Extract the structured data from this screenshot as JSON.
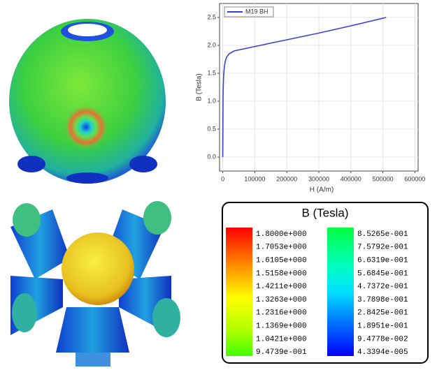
{
  "chart_data": {
    "type": "line",
    "x_label": "H (A/m)",
    "y_label": "B (Tesla)",
    "x": [
      0,
      500,
      1000,
      2000,
      3000,
      5000,
      8000,
      12000,
      20000,
      35000,
      100000,
      200000,
      300000,
      400000,
      510000
    ],
    "series": [
      {
        "name": "M19 BH",
        "color": "#3a3fd8",
        "values": [
          0,
          0.6,
          1.1,
          1.35,
          1.48,
          1.62,
          1.72,
          1.79,
          1.85,
          1.9,
          1.98,
          2.1,
          2.22,
          2.35,
          2.5
        ]
      }
    ],
    "xlim": [
      -10000,
      610000
    ],
    "ylim": [
      -0.25,
      2.75
    ],
    "xticks": [
      0,
      100000,
      200000,
      300000,
      400000,
      500000,
      600000
    ],
    "yticks": [
      {
        "value": 0,
        "label": "0.0"
      },
      0.5,
      {
        "value": 1,
        "label": "1.0"
      },
      1.5,
      {
        "value": 2,
        "label": "2.0"
      },
      2.5
    ],
    "grid": true
  },
  "colorbar": {
    "title": "B (Tesla)",
    "left_labels": [
      "1.8000e+000",
      "1.7053e+000",
      "1.6105e+000",
      "1.5158e+000",
      "1.4211e+000",
      "1.3263e+000",
      "1.2316e+000",
      "1.1369e+000",
      "1.0421e+000",
      "9.4739e-001"
    ],
    "right_labels": [
      "8.5265e-001",
      "7.5792e-001",
      "6.6319e-001",
      "5.6845e-001",
      "4.7372e-001",
      "3.7898e-001",
      "2.8425e-001",
      "1.8951e-001",
      "9.4778e-002",
      "4.3394e-005"
    ]
  }
}
